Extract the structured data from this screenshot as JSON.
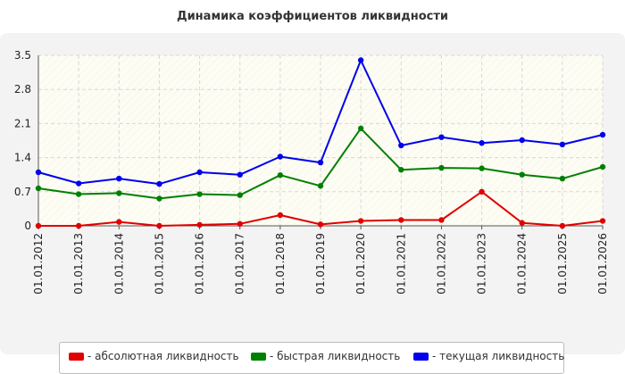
{
  "chart_data": {
    "type": "line",
    "title": "Динамика коэффициентов ликвидности",
    "xlabel": "",
    "ylabel": "",
    "categories": [
      "01.01.2012",
      "01.01.2013",
      "01.01.2014",
      "01.01.2015",
      "01.01.2016",
      "01.01.2017",
      "01.01.2018",
      "01.01.2019",
      "01.01.2020",
      "01.01.2021",
      "01.01.2022",
      "01.01.2023",
      "01.01.2024",
      "01.01.2025",
      "01.01.2026"
    ],
    "yticks": [
      "0",
      "0.7",
      "1.4",
      "2.1",
      "2.8",
      "3.5"
    ],
    "ylim": [
      0,
      3.5
    ],
    "grid": true,
    "legend_position": "bottom",
    "series": [
      {
        "name": "- абсолютная ликвидность",
        "color": "#e00000",
        "values": [
          0.0,
          0.0,
          0.08,
          0.0,
          0.02,
          0.04,
          0.22,
          0.03,
          0.1,
          0.12,
          0.12,
          0.7,
          0.06,
          0.0,
          0.1
        ]
      },
      {
        "name": "- быстрая ликвидность",
        "color": "#008000",
        "values": [
          0.77,
          0.65,
          0.67,
          0.56,
          0.65,
          0.63,
          1.04,
          0.82,
          2.0,
          1.15,
          1.19,
          1.18,
          1.05,
          0.97,
          1.21
        ]
      },
      {
        "name": "- текущая ликвидность",
        "color": "#0000ee",
        "values": [
          1.1,
          0.87,
          0.97,
          0.86,
          1.1,
          1.05,
          1.42,
          1.3,
          3.4,
          1.65,
          1.82,
          1.7,
          1.76,
          1.67,
          1.87
        ]
      }
    ]
  }
}
